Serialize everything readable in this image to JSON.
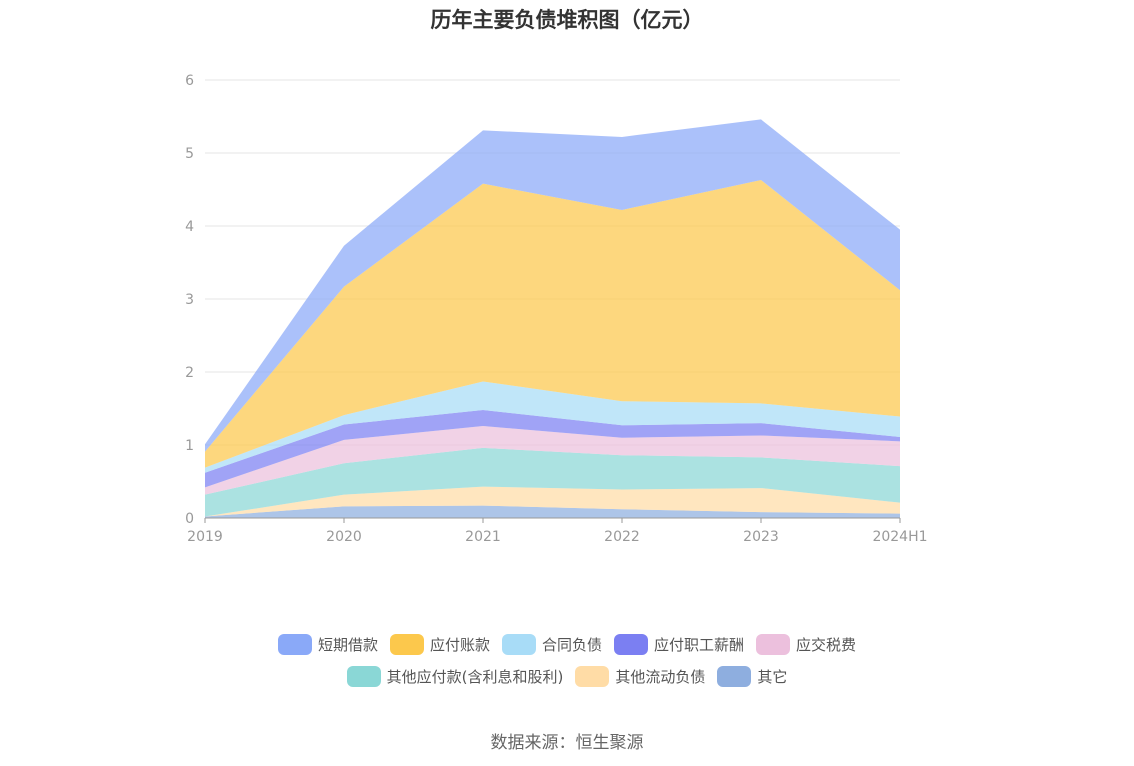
{
  "chart_data": {
    "type": "area",
    "stacked": true,
    "title": "历年主要负债堆积图（亿元）",
    "categories": [
      "2019",
      "2020",
      "2021",
      "2022",
      "2023",
      "2024H1"
    ],
    "ylim": [
      0,
      6
    ],
    "yticks": [
      "0",
      "1",
      "2",
      "3",
      "4",
      "5",
      "6"
    ],
    "grid": true,
    "legend_position": "bottom",
    "series": [
      {
        "name": "其它",
        "color": "#8eaedf",
        "values": [
          0.02,
          0.16,
          0.17,
          0.12,
          0.08,
          0.06
        ]
      },
      {
        "name": "其他流动负债",
        "color": "#ffdca6",
        "values": [
          0.0,
          0.16,
          0.26,
          0.27,
          0.33,
          0.15
        ]
      },
      {
        "name": "其他应付款(含利息和股利)",
        "color": "#8ad7d6",
        "values": [
          0.3,
          0.43,
          0.53,
          0.47,
          0.42,
          0.5
        ]
      },
      {
        "name": "应交税费",
        "color": "#ecc0dd",
        "values": [
          0.1,
          0.32,
          0.3,
          0.24,
          0.3,
          0.34
        ]
      },
      {
        "name": "应付职工薪酬",
        "color": "#7b7ff2",
        "values": [
          0.2,
          0.21,
          0.22,
          0.17,
          0.17,
          0.06
        ]
      },
      {
        "name": "合同负债",
        "color": "#a8dcf7",
        "values": [
          0.07,
          0.13,
          0.39,
          0.33,
          0.27,
          0.28
        ]
      },
      {
        "name": "应付账款",
        "color": "#fcc84c",
        "values": [
          0.22,
          1.76,
          2.71,
          2.62,
          3.06,
          1.73
        ]
      },
      {
        "name": "短期借款",
        "color": "#8aa9f8",
        "values": [
          0.1,
          0.56,
          0.73,
          1.0,
          0.83,
          0.83
        ]
      }
    ]
  },
  "legend": {
    "row1": [
      {
        "label": "短期借款",
        "color": "#8aa9f8"
      },
      {
        "label": "应付账款",
        "color": "#fcc84c"
      },
      {
        "label": "合同负债",
        "color": "#a8dcf7"
      },
      {
        "label": "应付职工薪酬",
        "color": "#7b7ff2"
      },
      {
        "label": "应交税费",
        "color": "#ecc0dd"
      }
    ],
    "row2": [
      {
        "label": "其他应付款(含利息和股利)",
        "color": "#8ad7d6"
      },
      {
        "label": "其他流动负债",
        "color": "#ffdca6"
      },
      {
        "label": "其它",
        "color": "#8eaedf"
      }
    ]
  },
  "source": "数据来源：恒生聚源"
}
